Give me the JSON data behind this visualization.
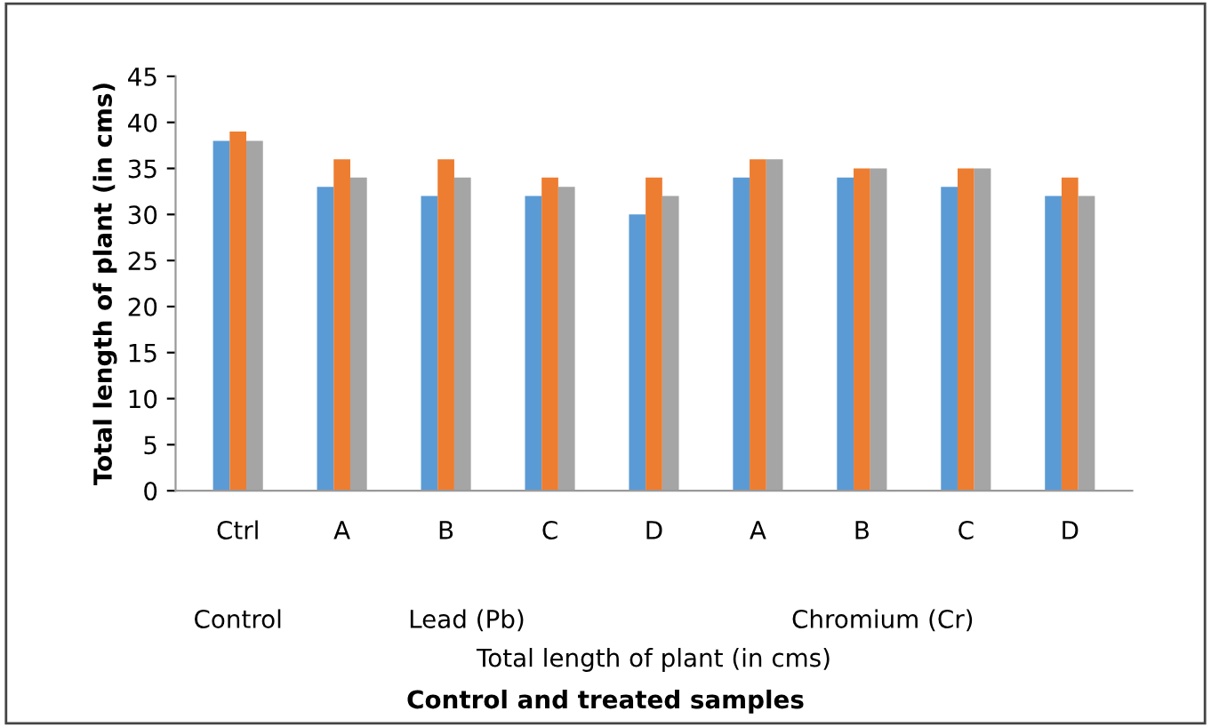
{
  "chart_data": {
    "type": "bar",
    "ylabel": "Total length of plant (in cms)",
    "xlabel": "Total length of plant (in cms)",
    "categories": [
      "Ctrl",
      "A",
      "B",
      "C",
      "D",
      "A",
      "B",
      "C",
      "D"
    ],
    "series": [
      {
        "color": "#5b9bd5",
        "values": [
          38,
          33,
          32,
          32,
          30,
          34,
          34,
          33,
          32
        ]
      },
      {
        "color": "#ed7d31",
        "values": [
          39,
          36,
          36,
          34,
          34,
          36,
          35,
          35,
          34
        ]
      },
      {
        "color": "#a5a5a5",
        "values": [
          38,
          34,
          34,
          33,
          32,
          36,
          35,
          35,
          32
        ]
      }
    ],
    "ylim": [
      0,
      45
    ],
    "yticks": [
      0,
      5,
      10,
      15,
      20,
      25,
      30,
      35,
      40,
      45
    ],
    "annotations": [
      "Control",
      "Lead (Pb)",
      "Chromium (Cr)",
      "Control and treated samples"
    ]
  }
}
